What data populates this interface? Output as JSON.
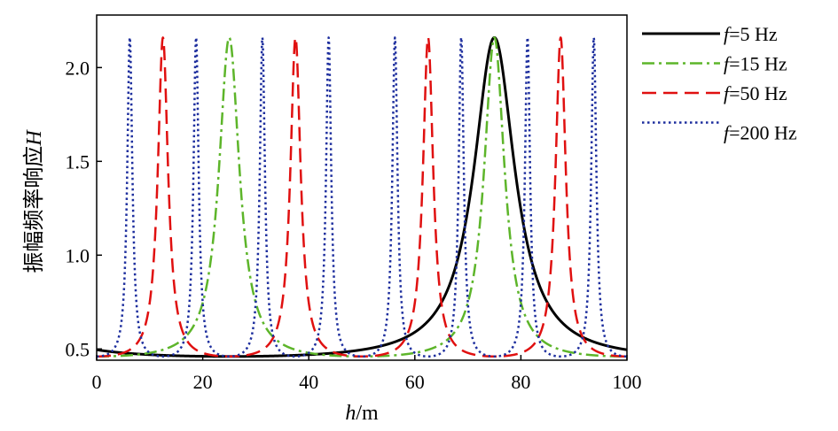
{
  "chart_data": {
    "type": "line",
    "xlabel": {
      "italic": "h",
      "rest": "/m"
    },
    "ylabel": {
      "main": "振幅频率响应",
      "italic": "H"
    },
    "xlim": [
      0,
      100
    ],
    "ylim": [
      0.44,
      2.28
    ],
    "xticks": [
      "0",
      "20",
      "40",
      "60",
      "80",
      "100"
    ],
    "yticks": [
      "0.5",
      "1.0",
      "1.5",
      "2.0"
    ],
    "grid": false,
    "legend_position": "outside-right-top",
    "model": {
      "min": 0.46,
      "max": 2.16,
      "k": 0.0214
    },
    "series": [
      {
        "name_prefix": "f",
        "name_suffix": "=5 Hz",
        "frequency": 5,
        "peaks_at": [
          75
        ],
        "color": "#000000",
        "dash": "",
        "width": 3.0
      },
      {
        "name_prefix": "f",
        "name_suffix": "=15 Hz",
        "frequency": 15,
        "peaks_at": [
          25,
          75
        ],
        "color": "#5db52a",
        "dash": "14 5 3 5",
        "width": 2.5
      },
      {
        "name_prefix": "f",
        "name_suffix": "=50 Hz",
        "frequency": 50,
        "peaks_at": [
          12.5,
          37.5,
          62.5,
          87.5
        ],
        "color": "#e01010",
        "dash": "16 8",
        "width": 2.5
      },
      {
        "name_prefix": "f",
        "name_suffix": "=200 Hz",
        "frequency": 200,
        "peaks_at": [
          6.25,
          18.75,
          31.25,
          43.75,
          56.25,
          68.75,
          81.25,
          93.75
        ],
        "color": "#1e2f9e",
        "dash": "2.5 3.5",
        "width": 2.5
      }
    ]
  }
}
